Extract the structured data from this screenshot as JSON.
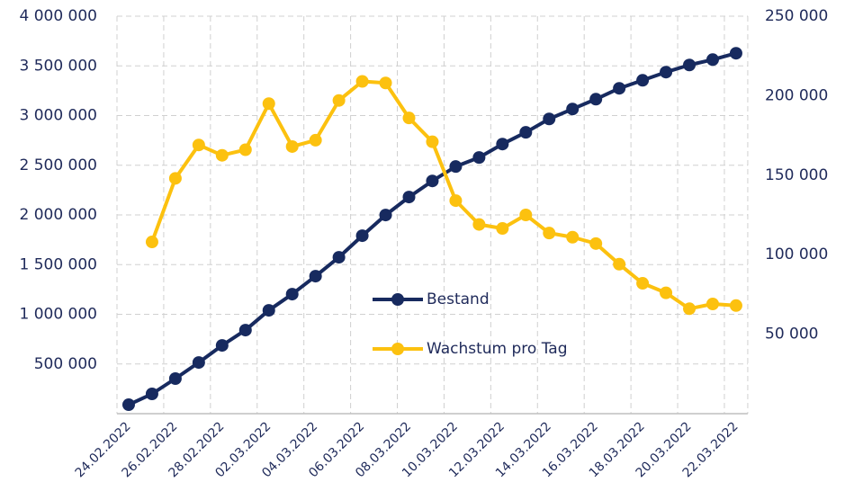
{
  "chart_data": {
    "type": "line",
    "categories": [
      "24.02.2022",
      null,
      "26.02.2022",
      null,
      "28.02.2022",
      null,
      "02.03.2022",
      null,
      "04.03.2022",
      null,
      "06.03.2022",
      null,
      "08.03.2022",
      null,
      "10.03.2022",
      null,
      "12.03.2022",
      null,
      "14.03.2022",
      null,
      "16.03.2022",
      null,
      "18.03.2022",
      null,
      "20.03.2022",
      null,
      "22.03.2022"
    ],
    "series": [
      {
        "name": "Bestand",
        "color": "#172a5f",
        "values": [
          90000,
          199000,
          353000,
          515000,
          687000,
          841000,
          1040000,
          1203000,
          1384000,
          1574000,
          1791000,
          1999000,
          2180000,
          2342000,
          2487000,
          2578000,
          2713000,
          2831000,
          2966000,
          3066000,
          3165000,
          3274000,
          3355000,
          3437000,
          3509000,
          3563000,
          3627000
        ]
      },
      {
        "name": "Wachstum pro Tag",
        "color": "#fcc10f",
        "axis": "y2",
        "values": [
          null,
          108000,
          148000,
          169000,
          162500,
          166000,
          195000,
          168000,
          172000,
          197000,
          209000,
          208000,
          186000,
          171000,
          134000,
          119000,
          116500,
          125000,
          113600,
          111000,
          107000,
          94000,
          82000,
          76000,
          66000,
          69000,
          68000
        ]
      }
    ],
    "ylim": [
      0,
      4000000
    ],
    "yticks": [
      {
        "value": 500000,
        "label": "500 000"
      },
      {
        "value": 1000000,
        "label": "1 000 000"
      },
      {
        "value": 1500000,
        "label": "1 500 000"
      },
      {
        "value": 2000000,
        "label": "2 000 000"
      },
      {
        "value": 2500000,
        "label": "2 500 000"
      },
      {
        "value": 3000000,
        "label": "3 000 000"
      },
      {
        "value": 3500000,
        "label": "3 500 000"
      },
      {
        "value": 4000000,
        "label": "4 000 000"
      }
    ],
    "y2lim": [
      0,
      250000
    ],
    "y2ticks": [
      {
        "value": 50000,
        "label": "50 000"
      },
      {
        "value": 100000,
        "label": "100 000"
      },
      {
        "value": 150000,
        "label": "150 000"
      },
      {
        "value": 200000,
        "label": "200 000"
      },
      {
        "value": 250000,
        "label": "250 000"
      }
    ],
    "grid": true
  }
}
